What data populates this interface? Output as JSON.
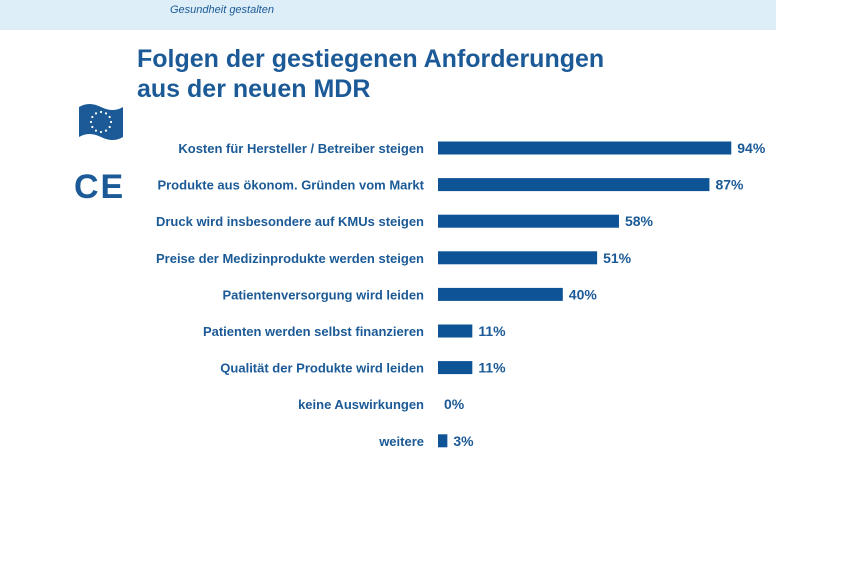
{
  "header": {
    "tagline": "Gesundheit gestalten",
    "color": "#1b5a96",
    "band_color": "#ddeef8"
  },
  "title_lines": [
    "Folgen der gestiegenen Anforderungen",
    "aus der neuen MDR"
  ],
  "icons": {
    "flag": "eu-flag-icon",
    "ce": "ce-mark-icon",
    "ce_text": "CE"
  },
  "chart_data": {
    "type": "bar",
    "orientation": "horizontal",
    "title": "Folgen der gestiegenen Anforderungen aus der neuen MDR",
    "categories": [
      "Kosten für Hersteller / Betreiber steigen",
      "Produkte aus ökonom. Gründen vom Markt",
      "Druck wird insbesondere auf KMUs steigen",
      "Preise der Medizinprodukte werden steigen",
      "Patientenversorgung wird leiden",
      "Patienten werden selbst finanzieren",
      "Qualität der Produkte wird leiden",
      "keine Auswirkungen",
      "weitere"
    ],
    "values": [
      94,
      87,
      58,
      51,
      40,
      11,
      11,
      0,
      3
    ],
    "value_labels": [
      "94%",
      "87%",
      "58%",
      "51%",
      "40%",
      "11%",
      "11%",
      "0%",
      "3%"
    ],
    "unit": "%",
    "xlim": [
      0,
      100
    ],
    "bar_color": "#0d5396",
    "grid": false,
    "legend": "none"
  }
}
